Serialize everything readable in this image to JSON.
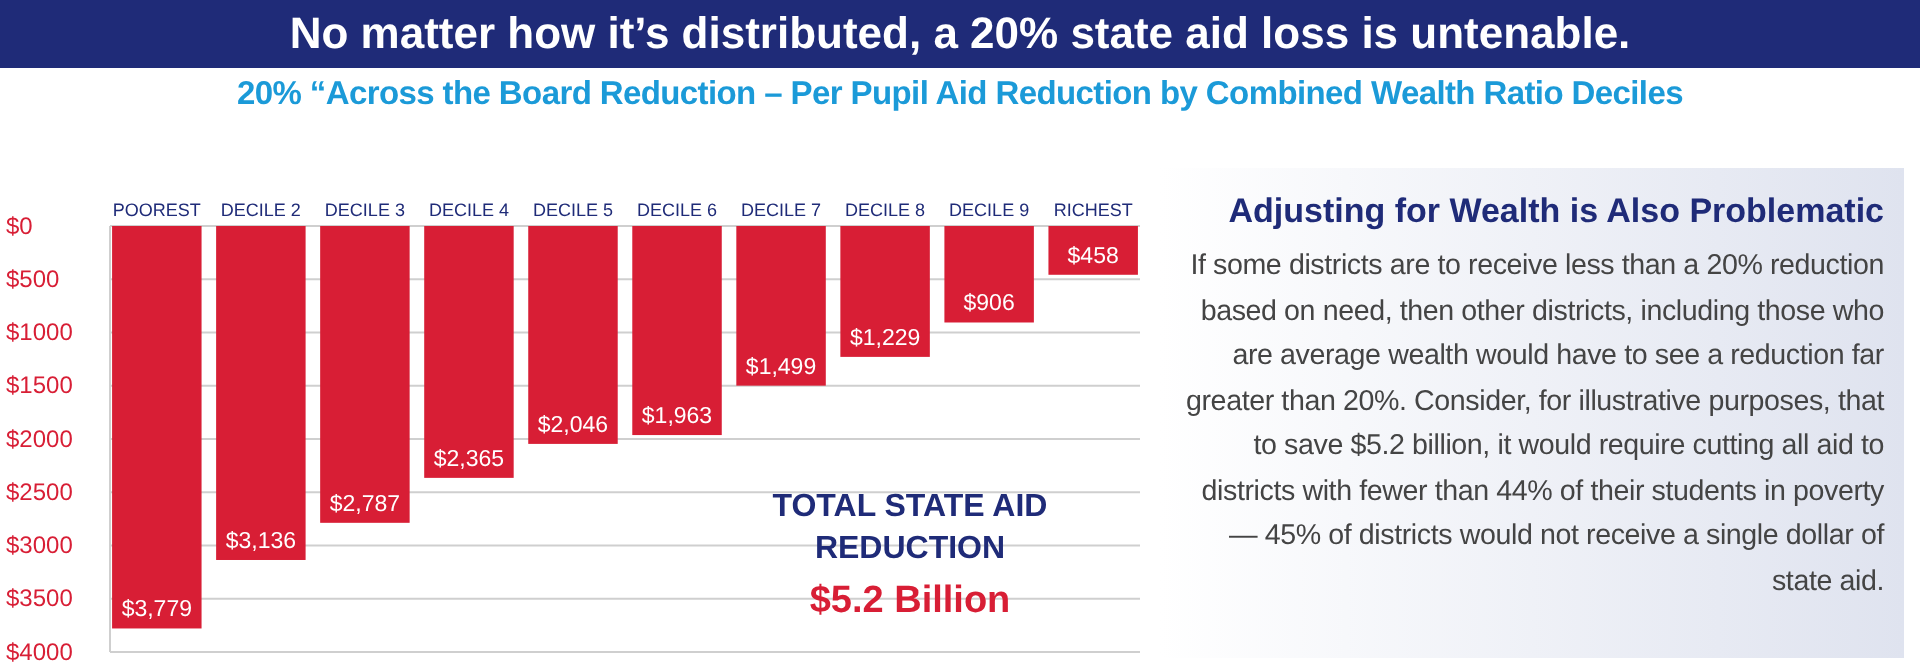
{
  "chart_data": {
    "type": "bar",
    "title": "No matter how it’s distributed, a 20% state aid loss is untenable.",
    "subtitle": "20% “Across the Board Reduction – Per Pupil Aid Reduction by Combined Wealth Ratio Deciles",
    "categories": [
      "POOREST",
      "DECILE 2",
      "DECILE 3",
      "DECILE 4",
      "DECILE 5",
      "DECILE 6",
      "DECILE 7",
      "DECILE 8",
      "DECILE 9",
      "RICHEST"
    ],
    "values": [
      3779,
      3136,
      2787,
      2365,
      2046,
      1963,
      1499,
      1229,
      906,
      458
    ],
    "value_labels": [
      "$3,779",
      "$3,136",
      "$2,787",
      "$2,365",
      "$2,046",
      "$1,963",
      "$1,499",
      "$1,229",
      "$906",
      "$458"
    ],
    "color": "#d81e35",
    "ylim": [
      4000,
      0
    ],
    "yticks": [
      {
        "value": 0,
        "label": "$0"
      },
      {
        "value": 500,
        "label": "$500"
      },
      {
        "value": 1000,
        "label": "$1000"
      },
      {
        "value": 1500,
        "label": "$1500"
      },
      {
        "value": 2000,
        "label": "$2000"
      },
      {
        "value": 2500,
        "label": "$2500"
      },
      {
        "value": 3000,
        "label": "$3000"
      },
      {
        "value": 3500,
        "label": "$3500"
      },
      {
        "value": 4000,
        "label": "$4000"
      }
    ],
    "grid": "y",
    "annotations": [
      "TOTAL STATE AID REDUCTION",
      "$5.2 Billion",
      "Adjusting for Wealth is Also Problematic",
      "If some districts are to receive less than a 20% reduction based on need, then other districts, including those who are average wealth would have to see a reduction far greater than 20%. Consider, for illustrative purposes, that to save $5.2 billion, it would require cutting all aid to districts with fewer than 44% of their students in poverty — 45% of districts would not receive a single dollar of state aid."
    ]
  }
}
